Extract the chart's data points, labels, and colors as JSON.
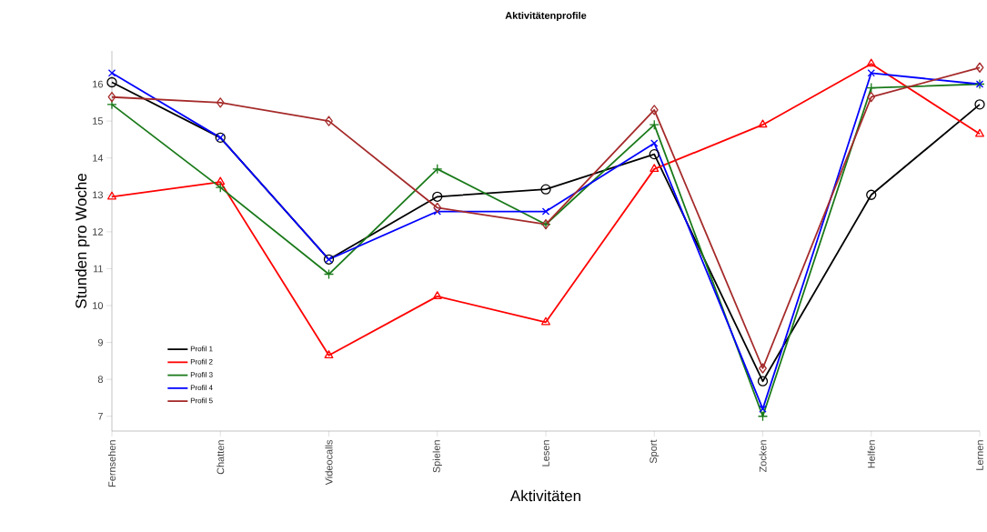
{
  "chart_data": {
    "type": "line",
    "title": "Aktivitätenprofile",
    "xlabel": "Aktivitäten",
    "ylabel": "Stunden pro Woche",
    "categories": [
      "Fernsehen",
      "Chatten",
      "Videocalls",
      "Spielen",
      "Lesen",
      "Sport",
      "Zocken",
      "Helfen",
      "Lernen"
    ],
    "ylim": [
      6.6,
      16.9
    ],
    "yticks": [
      7,
      8,
      9,
      10,
      11,
      12,
      13,
      14,
      15,
      16
    ],
    "grid": false,
    "legend": "bottom left",
    "line_style": "solid",
    "series": [
      {
        "name": "Profil 1",
        "color": "#000000",
        "marker": "circle",
        "values": [
          16.05,
          14.55,
          11.25,
          12.95,
          13.15,
          14.1,
          7.95,
          13.0,
          15.45
        ]
      },
      {
        "name": "Profil 2",
        "color": "#ff0000",
        "marker": "triangle",
        "values": [
          12.95,
          13.35,
          8.65,
          10.25,
          9.55,
          13.7,
          14.9,
          16.55,
          14.65
        ]
      },
      {
        "name": "Profil 3",
        "color": "#1a7a1a",
        "marker": "plus",
        "values": [
          15.45,
          13.2,
          10.85,
          13.7,
          12.2,
          14.9,
          7.0,
          15.9,
          16.0
        ]
      },
      {
        "name": "Profil 4",
        "color": "#0000ff",
        "marker": "cross",
        "values": [
          16.3,
          14.55,
          11.25,
          12.55,
          12.55,
          14.4,
          7.2,
          16.3,
          16.0
        ]
      },
      {
        "name": "Profil 5",
        "color": "#a52a2a",
        "marker": "diamond",
        "values": [
          15.65,
          15.5,
          15.0,
          12.65,
          12.2,
          15.3,
          8.3,
          15.65,
          16.45
        ]
      }
    ]
  }
}
